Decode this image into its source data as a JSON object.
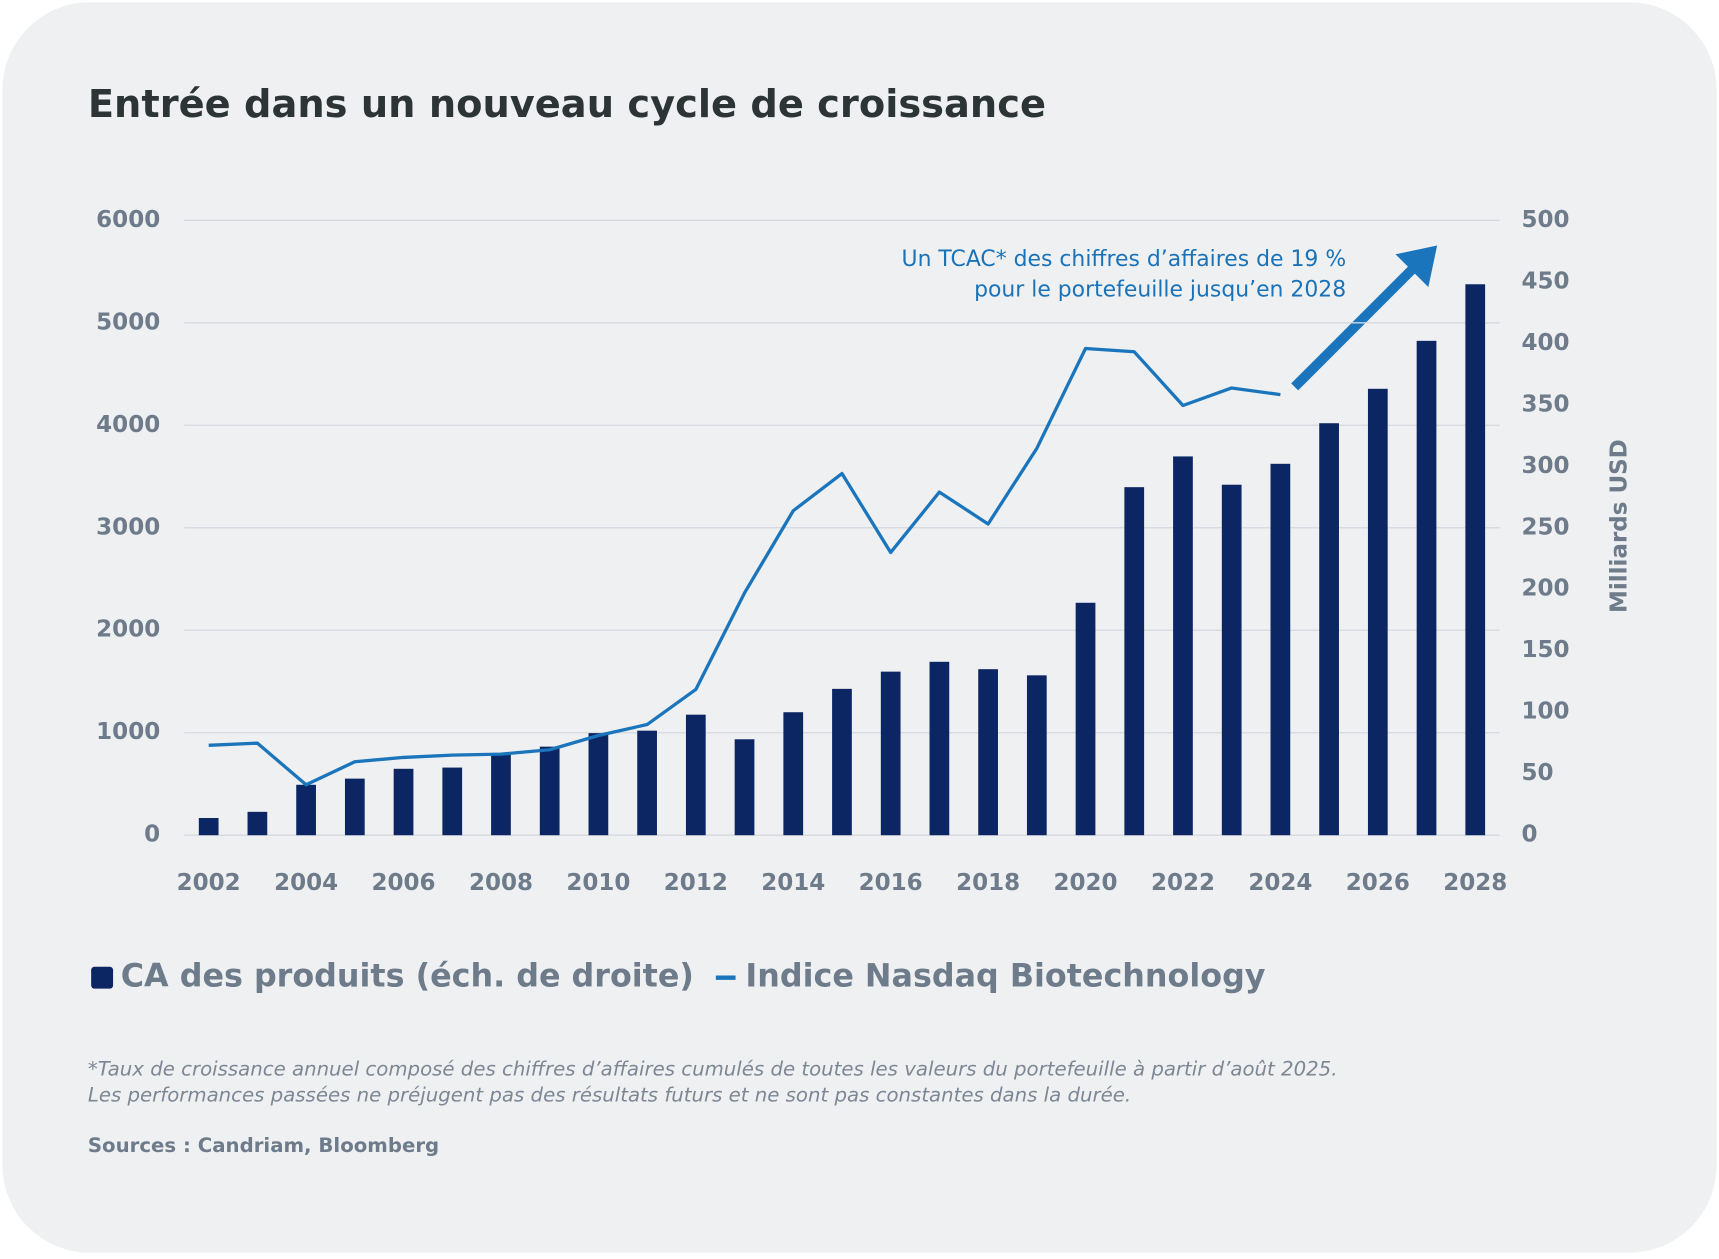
{
  "chart_data": {
    "type": "bar",
    "title": "Entrée dans un nouveau cycle de croissance",
    "y2label": "Milliards USD",
    "annotation": [
      "Un TCAC* des chiffres d’affaires de 19 %",
      "pour le portefeuille jusqu’en 2028"
    ],
    "footnote": [
      "*Taux de croissance annuel composé des chiffres d’affaires cumulés de toutes les valeurs du portefeuille à partir d’août 2025.",
      "Les performances passées ne préjugent pas des résultats futurs et ne sont pas constantes dans la durée."
    ],
    "source": "Sources : Candriam, Bloomberg",
    "x": [
      2002,
      2003,
      2004,
      2005,
      2006,
      2007,
      2008,
      2009,
      2010,
      2011,
      2012,
      2013,
      2014,
      2015,
      2016,
      2017,
      2018,
      2019,
      2020,
      2021,
      2022,
      2023,
      2024,
      2025,
      2026,
      2027,
      2028
    ],
    "xlim": [
      2001.5,
      2028.5
    ],
    "xticks": [
      2002,
      2004,
      2006,
      2008,
      2010,
      2012,
      2014,
      2016,
      2018,
      2020,
      2022,
      2024,
      2026,
      2028
    ],
    "ylim": [
      0,
      6000
    ],
    "yticks": [
      0,
      1000,
      2000,
      3000,
      4000,
      5000,
      6000
    ],
    "y2lim": [
      0,
      500
    ],
    "y2ticks": [
      0,
      50,
      100,
      150,
      200,
      250,
      300,
      350,
      400,
      450,
      500
    ],
    "grid": true,
    "legend": "bottom",
    "series": [
      {
        "name": "CA des produits (éch. de droite)",
        "type": "bar",
        "axis": "y2",
        "color": "#0b2663",
        "values": [
          14,
          19,
          41,
          46,
          54,
          55,
          66,
          72,
          83,
          85,
          98,
          78,
          100,
          119,
          133,
          141,
          135,
          130,
          189,
          283,
          308,
          285,
          302,
          335,
          363,
          402,
          448
        ]
      },
      {
        "name": "Indice Nasdaq Biotechnology",
        "type": "line",
        "color": "#1a75bc",
        "values": [
          877,
          898,
          492,
          717,
          759,
          781,
          791,
          834,
          973,
          1080,
          1422,
          2364,
          3166,
          3529,
          2759,
          3348,
          3037,
          3775,
          4749,
          4717,
          4193,
          4364,
          4299,
          null,
          null,
          null,
          null
        ]
      }
    ]
  }
}
